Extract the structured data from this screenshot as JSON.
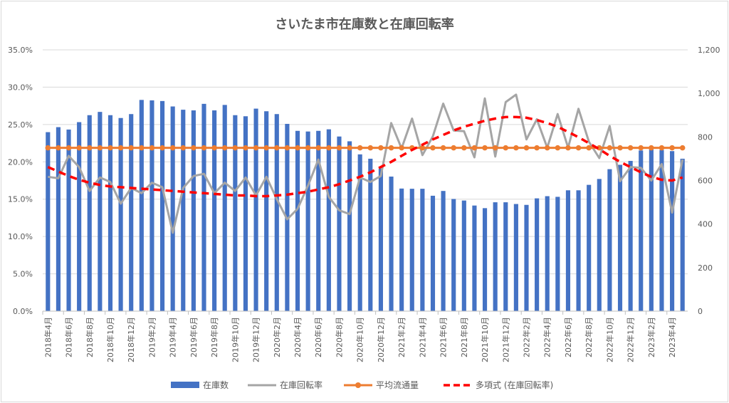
{
  "chart_data": {
    "type": "bar",
    "title": "さいたま市在庫数と在庫回転率",
    "categories": [
      "2018年4月",
      "2018年5月",
      "2018年6月",
      "2018年7月",
      "2018年8月",
      "2018年9月",
      "2018年10月",
      "2018年11月",
      "2018年12月",
      "2019年1月",
      "2019年2月",
      "2019年3月",
      "2019年4月",
      "2019年5月",
      "2019年6月",
      "2019年7月",
      "2019年8月",
      "2019年9月",
      "2019年10月",
      "2019年11月",
      "2019年12月",
      "2020年1月",
      "2020年2月",
      "2020年3月",
      "2020年4月",
      "2020年5月",
      "2020年6月",
      "2020年7月",
      "2020年8月",
      "2020年9月",
      "2020年10月",
      "2020年11月",
      "2020年12月",
      "2021年1月",
      "2021年2月",
      "2021年3月",
      "2021年4月",
      "2021年5月",
      "2021年6月",
      "2021年7月",
      "2021年8月",
      "2021年9月",
      "2021年10月",
      "2021年11月",
      "2021年12月",
      "2022年1月",
      "2022年2月",
      "2022年3月",
      "2022年4月",
      "2022年5月",
      "2022年6月",
      "2022年7月",
      "2022年8月",
      "2022年9月",
      "2022年10月",
      "2022年11月",
      "2022年12月",
      "2023年1月",
      "2023年2月",
      "2023年3月",
      "2023年4月",
      "2023年5月"
    ],
    "xtick_labels": [
      "2018年4月",
      "2018年6月",
      "2018年8月",
      "2018年10月",
      "2018年12月",
      "2019年2月",
      "2019年4月",
      "2019年6月",
      "2019年8月",
      "2019年10月",
      "2019年12月",
      "2020年2月",
      "2020年4月",
      "2020年6月",
      "2020年8月",
      "2020年10月",
      "2020年12月",
      "2021年2月",
      "2021年4月",
      "2021年6月",
      "2021年8月",
      "2021年10月",
      "2021年12月",
      "2022年2月",
      "2022年4月",
      "2022年6月",
      "2022年8月",
      "2022年10月",
      "2022年12月",
      "2023年2月",
      "2023年4月"
    ],
    "y_left_ticks": [
      "0.0%",
      "5.0%",
      "10.0%",
      "15.0%",
      "20.0%",
      "25.0%",
      "30.0%",
      "35.0%"
    ],
    "y_left_lim": [
      0,
      35
    ],
    "y_right_ticks": [
      "0",
      "200",
      "400",
      "600",
      "800",
      "1,000",
      "1,200"
    ],
    "y_right_lim": [
      0,
      1200
    ],
    "grid": true,
    "legend_position": "bottom",
    "series": [
      {
        "name": "在庫数",
        "type": "bar",
        "axis": "right",
        "color": "#4472c4",
        "values": [
          822,
          845,
          834,
          868,
          900,
          915,
          900,
          887,
          905,
          970,
          968,
          965,
          940,
          925,
          922,
          952,
          922,
          947,
          900,
          895,
          930,
          918,
          905,
          860,
          828,
          825,
          828,
          835,
          802,
          780,
          720,
          700,
          655,
          618,
          563,
          562,
          562,
          530,
          552,
          515,
          508,
          485,
          473,
          500,
          500,
          492,
          488,
          518,
          528,
          525,
          555,
          555,
          580,
          607,
          652,
          672,
          690,
          738,
          745,
          740,
          735,
          700
        ]
      },
      {
        "name": "在庫回転率",
        "type": "line",
        "axis": "left",
        "color": "#a5a5a5",
        "values": [
          18.0,
          17.8,
          20.8,
          19.3,
          16.1,
          17.9,
          17.3,
          14.4,
          16.5,
          15.8,
          17.2,
          16.6,
          10.5,
          16.5,
          18.1,
          18.4,
          15.8,
          17.2,
          16.1,
          17.9,
          15.5,
          18.0,
          15.0,
          12.3,
          13.7,
          16.8,
          20.3,
          15.3,
          13.5,
          13.0,
          17.9,
          17.3,
          18.1,
          25.2,
          21.8,
          25.8,
          20.9,
          23.4,
          27.8,
          24.2,
          24.1,
          20.6,
          28.5,
          20.7,
          28.0,
          29.0,
          23.0,
          25.7,
          21.9,
          26.4,
          21.9,
          27.1,
          22.7,
          20.5,
          24.8,
          17.4,
          19.3,
          19.2,
          17.5,
          19.7,
          13.2,
          20.3
        ]
      },
      {
        "name": "平均流通量",
        "type": "line",
        "axis": "right",
        "color": "#ed7d31",
        "values": [
          750,
          750,
          750,
          750,
          750,
          750,
          750,
          750,
          750,
          750,
          750,
          750,
          750,
          750,
          750,
          750,
          750,
          750,
          750,
          750,
          750,
          750,
          750,
          750,
          750,
          750,
          750,
          750,
          750,
          750,
          750,
          750,
          750,
          750,
          750,
          750,
          750,
          750,
          750,
          750,
          750,
          750,
          750,
          750,
          750,
          750,
          750,
          750,
          750,
          750,
          750,
          750,
          750,
          750,
          750,
          750,
          750,
          750,
          750,
          750,
          750,
          750
        ]
      },
      {
        "name": "多項式 (在庫回転率)",
        "type": "trendline",
        "axis": "left",
        "color": "#ff0000",
        "values": [
          19.3,
          18.7,
          18.1,
          17.6,
          17.2,
          16.9,
          16.7,
          16.6,
          16.5,
          16.4,
          16.3,
          16.2,
          16.1,
          16.0,
          15.9,
          15.8,
          15.7,
          15.6,
          15.5,
          15.5,
          15.4,
          15.4,
          15.5,
          15.6,
          15.8,
          16.0,
          16.3,
          16.6,
          17.0,
          17.5,
          18.0,
          18.6,
          19.3,
          20.0,
          20.8,
          21.6,
          22.3,
          23.0,
          23.6,
          24.2,
          24.7,
          25.1,
          25.5,
          25.8,
          26.0,
          26.0,
          25.9,
          25.6,
          25.2,
          24.7,
          24.0,
          23.3,
          22.5,
          21.7,
          20.8,
          20.0,
          19.3,
          18.6,
          18.0,
          17.6,
          17.5,
          17.9
        ]
      }
    ]
  }
}
